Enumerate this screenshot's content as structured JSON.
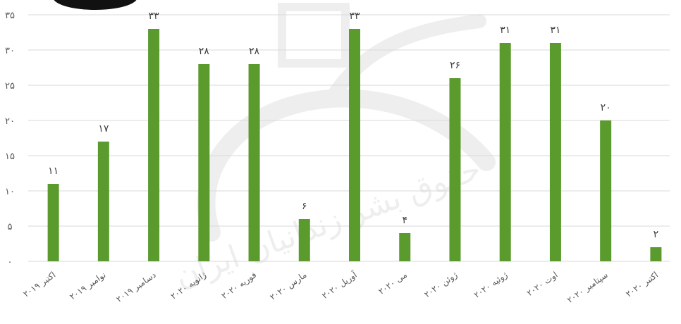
{
  "chart_data": {
    "type": "bar",
    "categories": [
      "اکتبر ۲۰۱۹",
      "نوامبر ۲۰۱۹",
      "دسامبر ۲۰۱۹",
      "ژانویه ۲۰۲۰",
      "فوریه ۲۰۲۰",
      "مارس ۲۰۲۰",
      "آوریل ۲۰۲۰",
      "می ۲۰۲۰",
      "ژوئن ۲۰۲۰",
      "ژوئیه ۲۰۲۰",
      "اوت ۲۰۲۰",
      "سپتامبر ۲۰۲۰",
      "اکتبر ۲۰۲۰"
    ],
    "values": [
      11,
      17,
      33,
      28,
      28,
      6,
      33,
      4,
      26,
      31,
      31,
      20,
      2
    ],
    "value_labels": [
      "۱۱",
      "۱۷",
      "۳۳",
      "۲۸",
      "۲۸",
      "۶",
      "۳۳",
      "۴",
      "۲۶",
      "۳۱",
      "۳۱",
      "۲۰",
      "۲"
    ],
    "ylim": [
      0,
      35
    ],
    "yticks": [
      0,
      5,
      10,
      15,
      20,
      25,
      30,
      35
    ],
    "ytick_labels": [
      "۰",
      "۵",
      "۱۰",
      "۱۵",
      "۲۰",
      "۲۵",
      "۳۰",
      "۳۵"
    ],
    "bar_color": "#5b9a2d",
    "grid": true,
    "title": "",
    "xlabel": "",
    "ylabel": ""
  },
  "watermark": {
    "text": "حقوق بشر زندانیان ایران",
    "color": "#a8a8a8"
  }
}
